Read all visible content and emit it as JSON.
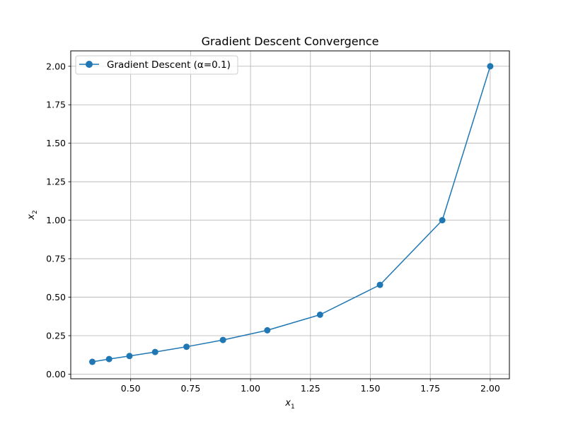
{
  "chart_data": {
    "type": "line",
    "title": "Gradient Descent Convergence",
    "xlabel": {
      "base": "x",
      "sub": "1"
    },
    "ylabel": {
      "base": "x",
      "sub": "2"
    },
    "xlim": [
      0.25,
      2.08
    ],
    "ylim": [
      -0.03,
      2.1
    ],
    "xticks": [
      0.5,
      0.75,
      1.0,
      1.25,
      1.5,
      1.75,
      2.0
    ],
    "xtick_labels": [
      "0.50",
      "0.75",
      "1.00",
      "1.25",
      "1.50",
      "1.75",
      "2.00"
    ],
    "yticks": [
      0.0,
      0.25,
      0.5,
      0.75,
      1.0,
      1.25,
      1.5,
      1.75,
      2.0
    ],
    "ytick_labels": [
      "0.00",
      "0.25",
      "0.50",
      "0.75",
      "1.00",
      "1.25",
      "1.50",
      "1.75",
      "2.00"
    ],
    "grid": true,
    "legend_position": "top-left",
    "series": [
      {
        "name": "Gradient Descent (α=0.1)",
        "color": "#1f77b4",
        "marker": "circle",
        "x": [
          2.0,
          1.8,
          1.54,
          1.29,
          1.07,
          0.885,
          0.733,
          0.602,
          0.495,
          0.41,
          0.34
        ],
        "y": [
          2.0,
          1.0,
          0.58,
          0.386,
          0.285,
          0.222,
          0.178,
          0.144,
          0.118,
          0.098,
          0.08
        ]
      }
    ]
  }
}
